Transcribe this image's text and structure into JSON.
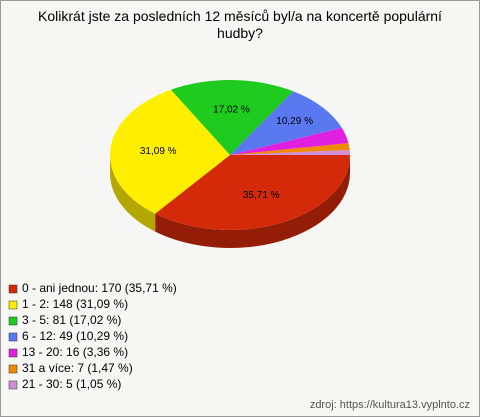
{
  "chart_data": {
    "type": "pie",
    "title": "Kolikrát jste za posledních 12 měsíců byl/a na koncertě populární hudby?",
    "categories": [
      "0 - ani jednou: 170 (35,71 %)",
      "1 - 2: 148 (31,09 %)",
      "3 - 5: 81 (17,02 %)",
      "6 - 12: 49 (10,29 %)",
      "13 - 20: 16 (3,36 %)",
      "31 a více: 7 (1,47 %)",
      "21 - 30: 5 (1,05 %)"
    ],
    "values": [
      35.71,
      31.09,
      17.02,
      10.29,
      3.36,
      1.47,
      1.05
    ],
    "value_labels": [
      "35,71 %",
      "31,09 %",
      "17,02 %",
      "10,29 %",
      null,
      null,
      null
    ],
    "colors": [
      "#d42a0a",
      "#ffee00",
      "#1ecb1e",
      "#5a78f0",
      "#e020e0",
      "#f08a00",
      "#d090d8"
    ],
    "source": "zdroj: https://kultura13.vyplnto.cz"
  }
}
